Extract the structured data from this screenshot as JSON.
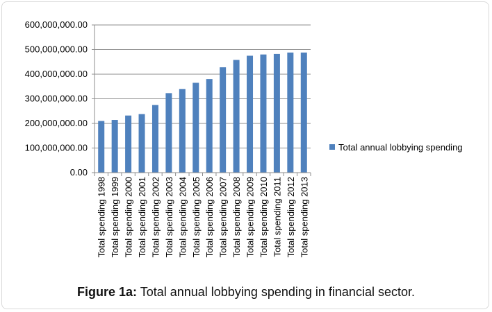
{
  "caption": {
    "prefix": "Figure 1a:",
    "text": " Total annual lobbying spending in financial sector."
  },
  "chart_data": {
    "type": "bar",
    "categories": [
      "Total spending 1998",
      "Total spending 1999",
      "Total spending 2000",
      "Total spending 2001",
      "Total spending 2002",
      "Total spending 2003",
      "Total spending 2004",
      "Total spending 2005",
      "Total spending 2006",
      "Total spending 2007",
      "Total spending 2008",
      "Total spending 2009",
      "Total spending 2010",
      "Total spending 2011",
      "Total spending 2012",
      "Total spending 2013"
    ],
    "series": [
      {
        "name": "Total annual lobbying spending",
        "color": "#4f81bd",
        "values": [
          210000000,
          214000000,
          232000000,
          238000000,
          275000000,
          323000000,
          340000000,
          365000000,
          380000000,
          428000000,
          458000000,
          475000000,
          480000000,
          482000000,
          488000000,
          488000000
        ]
      }
    ],
    "ylim": [
      0,
      600000000
    ],
    "yticks": [
      0,
      100000000,
      200000000,
      300000000,
      400000000,
      500000000,
      600000000
    ],
    "ytick_labels": [
      "0.00",
      "100,000,000.00",
      "200,000,000.00",
      "300,000,000.00",
      "400,000,000.00",
      "500,000,000.00",
      "600,000,000.00"
    ],
    "grid": true,
    "legend": "right"
  }
}
